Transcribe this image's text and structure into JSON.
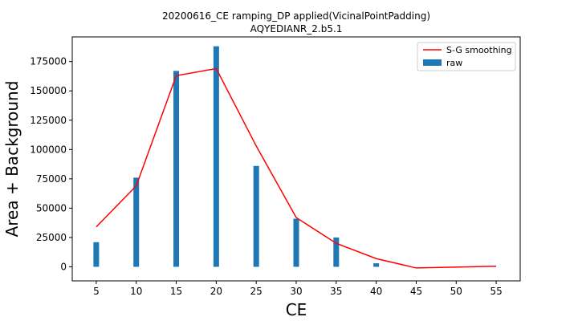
{
  "chart_data": {
    "type": "bar",
    "title_line1": "20200616_CE ramping_DP applied(VicinalPointPadding)",
    "title_line2": "AQYEDIANR_2.b5.1",
    "xlabel": "CE",
    "ylabel": "Area + Background",
    "xlim": [
      2,
      58
    ],
    "ylim": [
      -12000,
      196000
    ],
    "xticks": [
      5,
      10,
      15,
      20,
      25,
      30,
      35,
      40,
      45,
      50,
      55
    ],
    "yticks": [
      0,
      25000,
      50000,
      75000,
      100000,
      125000,
      150000,
      175000
    ],
    "grid": false,
    "legend_position": "top-right",
    "series": [
      {
        "name": "S-G smoothing",
        "kind": "line",
        "color": "#ff0000",
        "x": [
          5,
          10,
          15,
          20,
          25,
          30,
          35,
          40,
          45,
          55
        ],
        "values": [
          34000,
          69000,
          163000,
          169000,
          103000,
          42000,
          20000,
          7000,
          -1000,
          500
        ]
      },
      {
        "name": "raw",
        "kind": "bar",
        "color": "#1f77b4",
        "x": [
          5,
          10,
          15,
          20,
          25,
          30,
          35,
          40
        ],
        "values": [
          21000,
          76000,
          167000,
          188000,
          86000,
          41000,
          25000,
          3000
        ]
      }
    ]
  }
}
